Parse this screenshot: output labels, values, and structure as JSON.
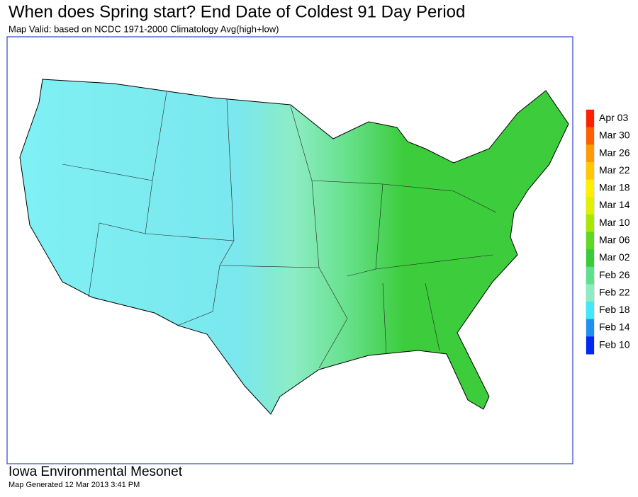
{
  "header": {
    "title": "When does Spring start?  End Date of Coldest 91 Day Period",
    "subtitle": "Map Valid: based on NCDC 1971-2000 Climatology Avg(high+low)"
  },
  "legend": {
    "items": [
      {
        "label": "Apr 03",
        "color": "#ff2000"
      },
      {
        "label": "Mar 30",
        "color": "#ff6000"
      },
      {
        "label": "Mar 26",
        "color": "#ff9a00"
      },
      {
        "label": "Mar 22",
        "color": "#ffc800"
      },
      {
        "label": "Mar 18",
        "color": "#fff000"
      },
      {
        "label": "Mar 14",
        "color": "#e0f000"
      },
      {
        "label": "Mar 10",
        "color": "#a8e800"
      },
      {
        "label": "Mar 06",
        "color": "#60d820"
      },
      {
        "label": "Mar 02",
        "color": "#38cc38"
      },
      {
        "label": "Feb 26",
        "color": "#5ee08c"
      },
      {
        "label": "Feb 22",
        "color": "#8cecc4"
      },
      {
        "label": "Feb 18",
        "color": "#40e8f8"
      },
      {
        "label": "Feb 14",
        "color": "#2090f0"
      },
      {
        "label": "Feb 10",
        "color": "#0028f0"
      }
    ]
  },
  "footer": {
    "source": "Iowa Environmental Mesonet",
    "generated": "Map Generated 12 Mar 2013 3:41 PM"
  }
}
